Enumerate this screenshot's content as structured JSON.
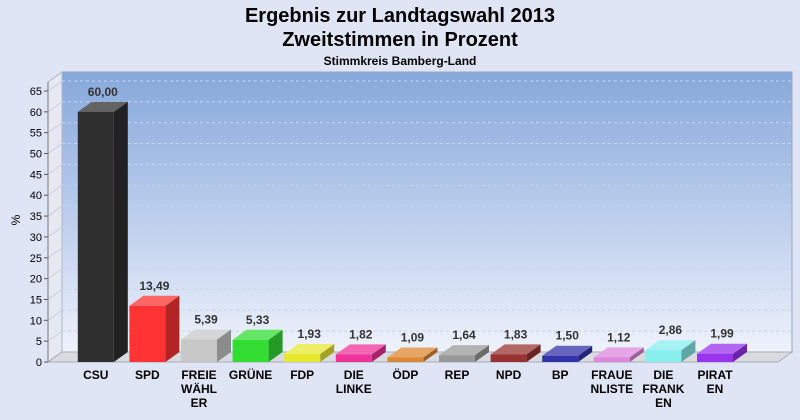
{
  "chart_data": {
    "type": "bar",
    "title": "Ergebnis zur Landtagswahl 2013",
    "subtitle": "Zweitstimmen in Prozent",
    "subsubtitle": "Stimmkreis Bamberg-Land",
    "ylabel": "%",
    "ylim": [
      0,
      65
    ],
    "yticks": [
      "0",
      "5",
      "10",
      "15",
      "20",
      "25",
      "30",
      "35",
      "40",
      "45",
      "50",
      "55",
      "60",
      "65"
    ],
    "categories": [
      [
        "CSU"
      ],
      [
        "SPD"
      ],
      [
        "FREIE",
        "WÄHL",
        "ER"
      ],
      [
        "GRÜNE"
      ],
      [
        "FDP"
      ],
      [
        "DIE",
        "LINKE"
      ],
      [
        "ÖDP"
      ],
      [
        "REP"
      ],
      [
        "NPD"
      ],
      [
        "BP"
      ],
      [
        "FRAUE",
        "NLISTE"
      ],
      [
        "DIE",
        "FRANK",
        "EN"
      ],
      [
        "PIRAT",
        "EN"
      ]
    ],
    "values": [
      60.0,
      13.49,
      5.39,
      5.33,
      1.93,
      1.82,
      1.09,
      1.64,
      1.83,
      1.5,
      1.12,
      2.86,
      1.99
    ],
    "value_labels": [
      "60,00",
      "13,49",
      "5,39",
      "5,33",
      "1,93",
      "1,82",
      "1,09",
      "1,64",
      "1,83",
      "1,50",
      "1,12",
      "2,86",
      "1,99"
    ],
    "colors": [
      "#2f2f2f",
      "#ff3333",
      "#c8c8c8",
      "#33dd33",
      "#e8e833",
      "#ee3399",
      "#dd8833",
      "#999999",
      "#993333",
      "#3333aa",
      "#dd88dd",
      "#88eeee",
      "#9933ee"
    ],
    "grid": true,
    "legend": "none"
  }
}
